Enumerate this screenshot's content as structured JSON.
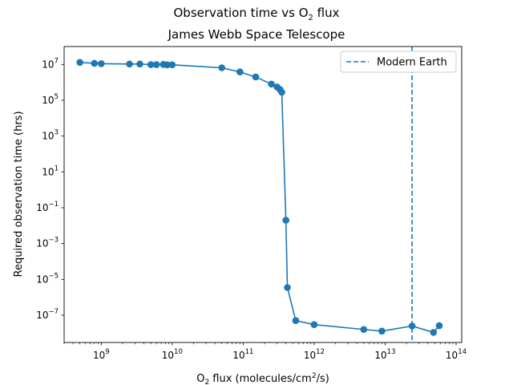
{
  "figure": {
    "suptitle": "Observation time vs O$_2$ flux",
    "suptitle_display": {
      "pre": "Observation time vs O",
      "sub": "2",
      "post": " flux"
    }
  },
  "chart_data": {
    "type": "line",
    "title": "James Webb Space Telescope",
    "xlabel": "O$_2$ flux (molecules/cm$^2$/s)",
    "xlabel_display": {
      "p1": "O",
      "sub": "2",
      "p2": " flux (molecules/cm",
      "sup": "2",
      "p3": "/s)"
    },
    "ylabel": "Required observation time (hrs)",
    "xscale": "log",
    "yscale": "log",
    "xlim": [
      300000000.0,
      120000000000000.0
    ],
    "ylim": [
      3e-09,
      100000000.0
    ],
    "grid": false,
    "legend_position": "upper right",
    "x_ticks": [
      {
        "value": 1000000000.0,
        "base": "10",
        "exp": "9"
      },
      {
        "value": 10000000000.0,
        "base": "10",
        "exp": "10"
      },
      {
        "value": 100000000000.0,
        "base": "10",
        "exp": "11"
      },
      {
        "value": 1000000000000.0,
        "base": "10",
        "exp": "12"
      },
      {
        "value": 10000000000000.0,
        "base": "10",
        "exp": "13"
      },
      {
        "value": 100000000000000.0,
        "base": "10",
        "exp": "14"
      }
    ],
    "y_ticks": [
      {
        "value": 10000000.0,
        "base": "10",
        "exp": "7"
      },
      {
        "value": 100000.0,
        "base": "10",
        "exp": "5"
      },
      {
        "value": 1000.0,
        "base": "10",
        "exp": "3"
      },
      {
        "value": 10.0,
        "base": "10",
        "exp": "1"
      },
      {
        "value": 0.1,
        "base": "10",
        "exp": "−1"
      },
      {
        "value": 0.001,
        "base": "10",
        "exp": "−3"
      },
      {
        "value": 1e-05,
        "base": "10",
        "exp": "−5"
      },
      {
        "value": 1e-07,
        "base": "10",
        "exp": "−7"
      }
    ],
    "series": [
      {
        "color": "#1f77b4",
        "marker": "circle",
        "points": [
          {
            "x": 500000000.0,
            "y": 13000000.0
          },
          {
            "x": 800000000.0,
            "y": 11500000.0
          },
          {
            "x": 1000000000.0,
            "y": 11000000.0
          },
          {
            "x": 2500000000.0,
            "y": 10500000.0
          },
          {
            "x": 3500000000.0,
            "y": 10500000.0
          },
          {
            "x": 5000000000.0,
            "y": 9800000.0
          },
          {
            "x": 6000000000.0,
            "y": 9800000.0
          },
          {
            "x": 7500000000.0,
            "y": 10000000.0
          },
          {
            "x": 8500000000.0,
            "y": 9500000.0
          },
          {
            "x": 10000000000.0,
            "y": 9500000.0
          },
          {
            "x": 50000000000.0,
            "y": 6500000.0
          },
          {
            "x": 90000000000.0,
            "y": 3800000.0
          },
          {
            "x": 150000000000.0,
            "y": 2000000.0
          },
          {
            "x": 250000000000.0,
            "y": 800000.0
          },
          {
            "x": 300000000000.0,
            "y": 550000.0
          },
          {
            "x": 330000000000.0,
            "y": 400000.0
          },
          {
            "x": 350000000000.0,
            "y": 280000.0
          },
          {
            "x": 400000000000.0,
            "y": 0.02
          },
          {
            "x": 420000000000.0,
            "y": 3.5e-06
          },
          {
            "x": 550000000000.0,
            "y": 5e-08
          },
          {
            "x": 1000000000000.0,
            "y": 3e-08
          },
          {
            "x": 5000000000000.0,
            "y": 1.6e-08
          },
          {
            "x": 9000000000000.0,
            "y": 1.3e-08
          },
          {
            "x": 24000000000000.0,
            "y": 2.5e-08
          },
          {
            "x": 48000000000000.0,
            "y": 1.1e-08
          },
          {
            "x": 58000000000000.0,
            "y": 2.6e-08
          }
        ]
      }
    ],
    "vline": {
      "name": "Modern Earth",
      "x": 24000000000000.0,
      "color": "#1f77b4",
      "style": "dashed"
    }
  }
}
